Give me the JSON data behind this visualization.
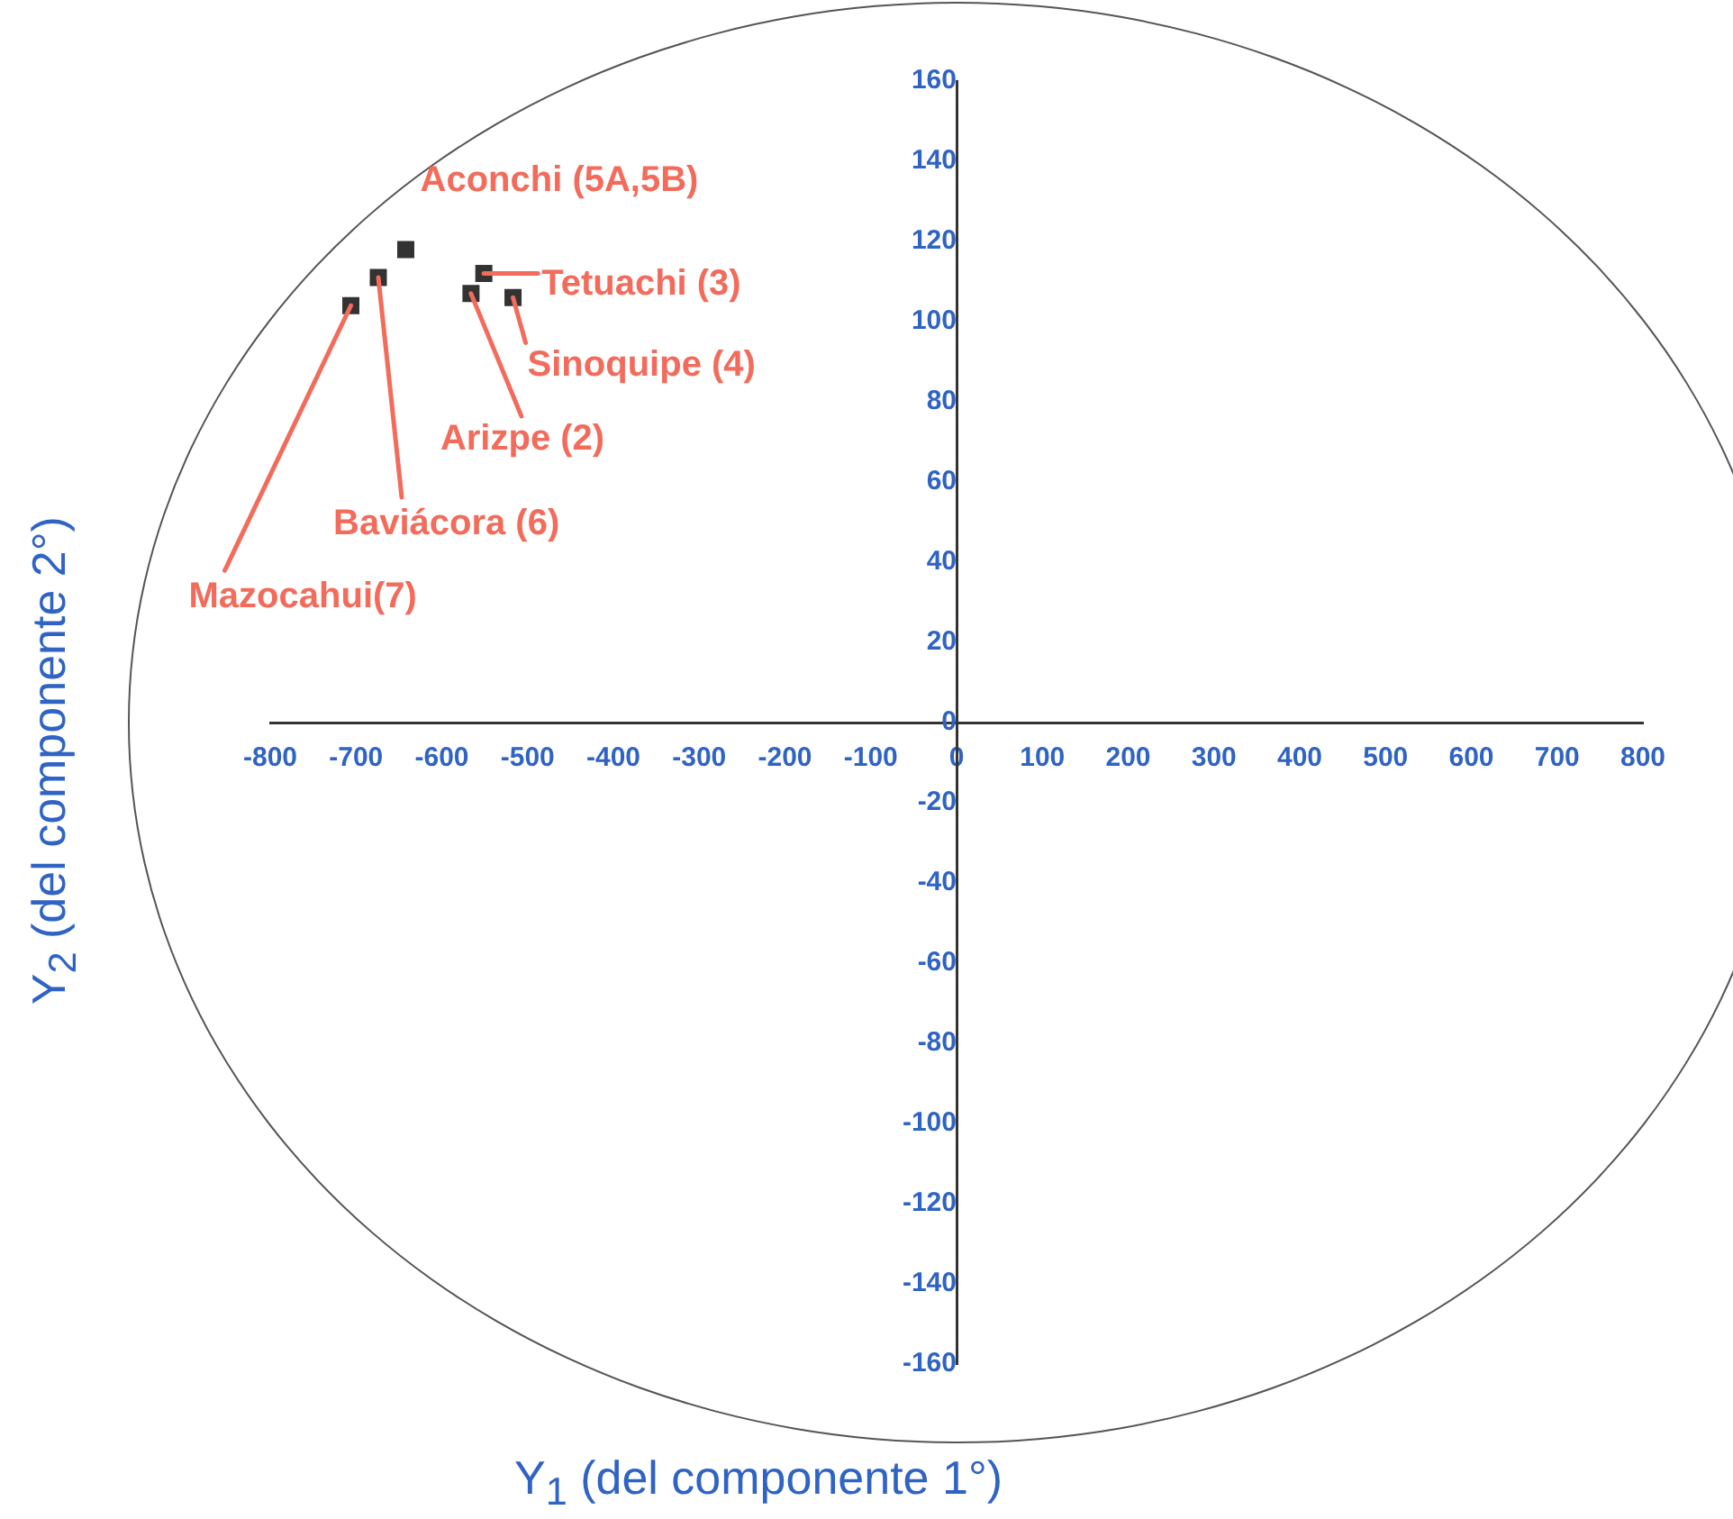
{
  "chart_data": {
    "type": "scatter",
    "xlabel": "Y$_{1}$  (del componente 1°)",
    "ylabel": "Y$_{2}$  (del componente 2°)",
    "x": [
      -642,
      -551,
      -517,
      -566,
      -674,
      -706
    ],
    "values": [
      118,
      112,
      106,
      107,
      111,
      104
    ],
    "color": "#333333",
    "marker": "square",
    "grid": false,
    "legend": false,
    "xlim": [
      -800,
      800
    ],
    "ylim": [
      -160,
      160
    ],
    "xticks": [
      -800,
      -700,
      -600,
      -500,
      -400,
      -300,
      -200,
      -100,
      0,
      100,
      200,
      300,
      400,
      500,
      600,
      700,
      800
    ],
    "yticks": [
      -160,
      -140,
      -120,
      -100,
      -80,
      -60,
      -40,
      -20,
      0,
      20,
      40,
      60,
      80,
      100,
      120,
      140,
      160
    ],
    "annotations": [
      {
        "text": "Aconchi (5A,5B)",
        "x": -642,
        "y": 118
      },
      {
        "text": "Tetuachi (3)",
        "x": -551,
        "y": 112
      },
      {
        "text": "Sinoquipe (4)",
        "x": -517,
        "y": 106
      },
      {
        "text": "Arizpe (2)",
        "x": -566,
        "y": 107
      },
      {
        "text": "Baviácora (6)",
        "x": -674,
        "y": 111
      },
      {
        "text": "Mazocahui(7)",
        "x": -706,
        "y": 104
      }
    ]
  }
}
